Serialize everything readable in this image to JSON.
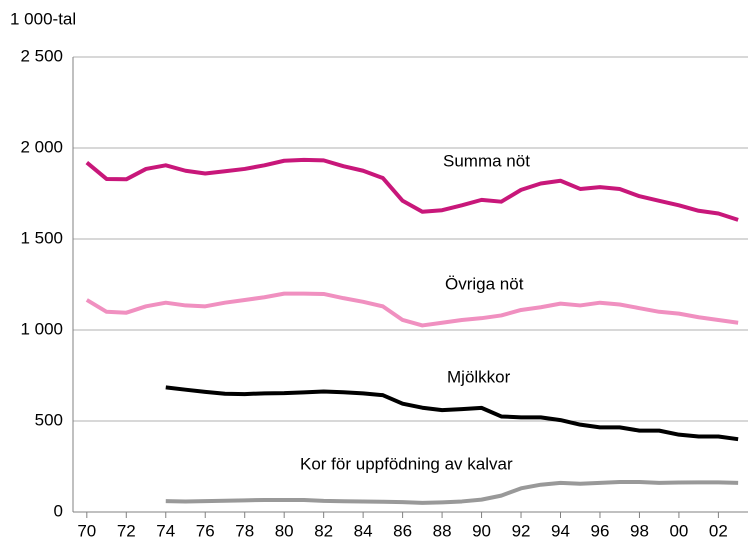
{
  "chart_data": {
    "type": "line",
    "ylabel": "1 000-tal",
    "x": [
      1970,
      1971,
      1972,
      1973,
      1974,
      1975,
      1976,
      1977,
      1978,
      1979,
      1980,
      1981,
      1982,
      1983,
      1984,
      1985,
      1986,
      1987,
      1988,
      1989,
      1990,
      1991,
      1992,
      1993,
      1994,
      1995,
      1996,
      1997,
      1998,
      1999,
      2000,
      2001,
      2002,
      2003
    ],
    "series": [
      {
        "name": "Summa nöt",
        "color": "#c8177a",
        "values": [
          1920,
          1830,
          1828,
          1885,
          1905,
          1875,
          1860,
          1872,
          1885,
          1905,
          1930,
          1935,
          1932,
          1900,
          1875,
          1835,
          1710,
          1650,
          1658,
          1685,
          1715,
          1705,
          1770,
          1805,
          1820,
          1775,
          1785,
          1775,
          1735,
          1710,
          1685,
          1655,
          1640,
          1605
        ]
      },
      {
        "name": "Övriga nöt",
        "color": "#f090c0",
        "values": [
          1165,
          1100,
          1095,
          1130,
          1150,
          1135,
          1130,
          1150,
          1165,
          1180,
          1200,
          1200,
          1198,
          1175,
          1155,
          1130,
          1055,
          1025,
          1040,
          1055,
          1065,
          1080,
          1110,
          1125,
          1145,
          1135,
          1150,
          1140,
          1120,
          1100,
          1090,
          1070,
          1055,
          1040
        ]
      },
      {
        "name": "Mjölkkor",
        "color": "#000000",
        "values": [
          null,
          null,
          null,
          null,
          685,
          672,
          660,
          650,
          648,
          652,
          653,
          657,
          662,
          658,
          652,
          642,
          595,
          573,
          560,
          565,
          572,
          525,
          520,
          520,
          505,
          480,
          465,
          465,
          447,
          447,
          425,
          415,
          415,
          400
        ]
      },
      {
        "name": "Kor för uppfödning av kalvar",
        "color": "#999999",
        "values": [
          null,
          null,
          null,
          null,
          60,
          58,
          60,
          62,
          64,
          66,
          66,
          66,
          61,
          59,
          58,
          56,
          54,
          50,
          53,
          58,
          68,
          90,
          130,
          150,
          160,
          155,
          160,
          165,
          165,
          160,
          162,
          163,
          163,
          160
        ]
      }
    ],
    "xlim": [
      1969.3,
      2003.5
    ],
    "ylim": [
      0,
      2500
    ],
    "xticks": [
      {
        "value": 1970,
        "label": "70"
      },
      {
        "value": 1972,
        "label": "72"
      },
      {
        "value": 1974,
        "label": "74"
      },
      {
        "value": 1976,
        "label": "76"
      },
      {
        "value": 1978,
        "label": "78"
      },
      {
        "value": 1980,
        "label": "80"
      },
      {
        "value": 1982,
        "label": "82"
      },
      {
        "value": 1984,
        "label": "84"
      },
      {
        "value": 1986,
        "label": "86"
      },
      {
        "value": 1988,
        "label": "88"
      },
      {
        "value": 1990,
        "label": "90"
      },
      {
        "value": 1992,
        "label": "92"
      },
      {
        "value": 1994,
        "label": "94"
      },
      {
        "value": 1996,
        "label": "96"
      },
      {
        "value": 1998,
        "label": "98"
      },
      {
        "value": 2000,
        "label": "00"
      },
      {
        "value": 2002,
        "label": "02"
      }
    ],
    "yticks": [
      0,
      500,
      {
        "value": 1000,
        "label": "1 000"
      },
      {
        "value": 1500,
        "label": "1 500"
      },
      {
        "value": 2000,
        "label": "2 000"
      },
      {
        "value": 2500,
        "label": "2 500"
      }
    ],
    "grid": true
  }
}
